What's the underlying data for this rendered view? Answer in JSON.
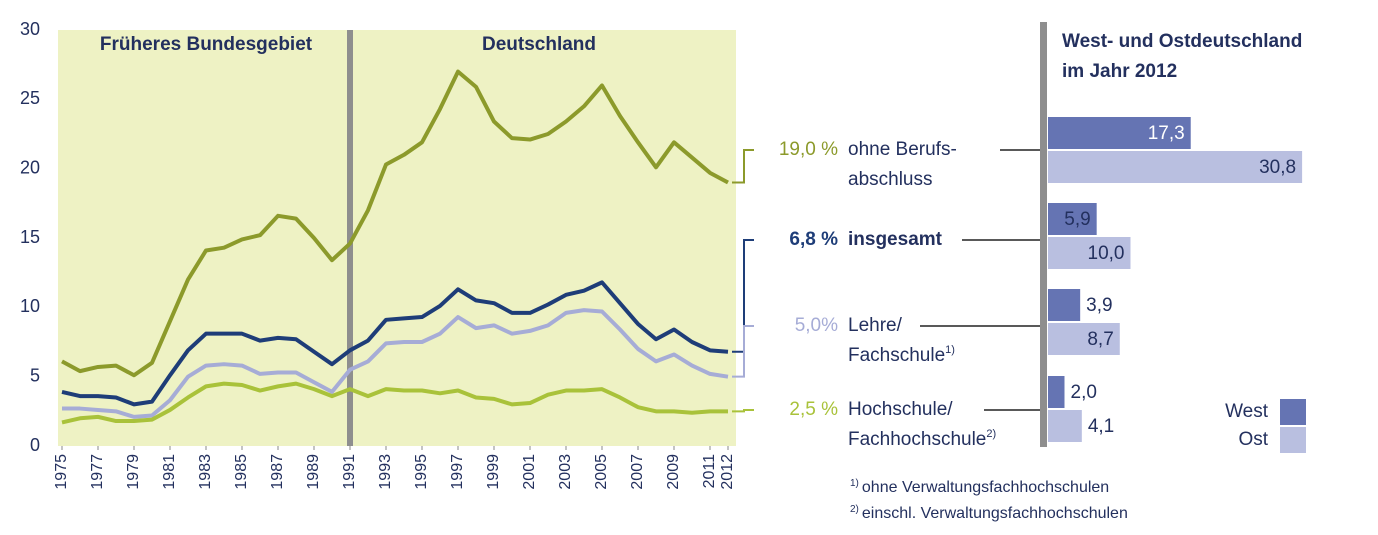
{
  "chart_data": [
    {
      "type": "line",
      "regions": [
        "Früheres Bundesgebiet",
        "Deutschland"
      ],
      "x": [
        1975,
        1976,
        1977,
        1978,
        1979,
        1980,
        1981,
        1982,
        1983,
        1984,
        1985,
        1986,
        1987,
        1988,
        1989,
        1990,
        1991,
        1992,
        1993,
        1994,
        1995,
        1996,
        1997,
        1998,
        1999,
        2000,
        2001,
        2002,
        2003,
        2004,
        2005,
        2006,
        2007,
        2008,
        2009,
        2010,
        2011,
        2012
      ],
      "xlim": [
        1975,
        2012
      ],
      "xticks": [
        1975,
        1977,
        1979,
        1981,
        1983,
        1985,
        1987,
        1989,
        1991,
        1993,
        1995,
        1997,
        1999,
        2001,
        2003,
        2005,
        2007,
        2009,
        2011,
        2012
      ],
      "ylim": [
        0,
        30
      ],
      "yticks": [
        0,
        5,
        10,
        15,
        20,
        25,
        30
      ],
      "divider": 1991,
      "series": [
        {
          "name_lines": [
            "ohne Berufs-",
            "abschluss"
          ],
          "end_label": "19,0 %",
          "color": "#8c9a2b",
          "values": [
            6.1,
            5.4,
            5.7,
            5.8,
            5.1,
            6.0,
            9.0,
            12.0,
            14.1,
            14.3,
            14.9,
            15.2,
            16.6,
            16.4,
            15.0,
            13.4,
            14.6,
            17.0,
            20.3,
            21.0,
            21.9,
            24.3,
            27.0,
            25.9,
            23.4,
            22.2,
            22.1,
            22.5,
            23.4,
            24.5,
            26.0,
            23.8,
            21.9,
            20.1,
            21.9,
            20.8,
            19.7,
            19.0
          ]
        },
        {
          "name_lines": [
            "insgesamt"
          ],
          "end_label": "6,8 %",
          "color": "#1e3d78",
          "bold": true,
          "values": [
            3.9,
            3.6,
            3.6,
            3.5,
            3.0,
            3.2,
            5.1,
            6.9,
            8.1,
            8.1,
            8.1,
            7.6,
            7.8,
            7.7,
            6.8,
            5.9,
            6.9,
            7.6,
            9.1,
            9.2,
            9.3,
            10.1,
            11.3,
            10.5,
            10.3,
            9.6,
            9.6,
            10.2,
            10.9,
            11.2,
            11.8,
            10.3,
            8.8,
            7.7,
            8.4,
            7.5,
            6.9,
            6.8
          ]
        },
        {
          "name_lines": [
            "Lehre/",
            "Fachschule"
          ],
          "footnote_mark": "1)",
          "end_label": "5,0%",
          "color": "#a6acd6",
          "values": [
            2.7,
            2.7,
            2.6,
            2.5,
            2.1,
            2.2,
            3.3,
            5.0,
            5.8,
            5.9,
            5.8,
            5.2,
            5.3,
            5.3,
            4.6,
            3.9,
            5.5,
            6.1,
            7.4,
            7.5,
            7.5,
            8.1,
            9.3,
            8.5,
            8.7,
            8.1,
            8.3,
            8.7,
            9.6,
            9.8,
            9.7,
            8.4,
            7.0,
            6.1,
            6.6,
            5.8,
            5.2,
            5.0
          ]
        },
        {
          "name_lines": [
            "Hochschule/",
            "Fachhochschule"
          ],
          "footnote_mark": "2)",
          "end_label": "2,5 %",
          "color": "#a9c23a",
          "values": [
            1.7,
            2.0,
            2.1,
            1.8,
            1.8,
            1.9,
            2.6,
            3.5,
            4.3,
            4.5,
            4.4,
            4.0,
            4.3,
            4.5,
            4.1,
            3.6,
            4.1,
            3.6,
            4.1,
            4.0,
            4.0,
            3.8,
            4.0,
            3.5,
            3.4,
            3.0,
            3.1,
            3.7,
            4.0,
            4.0,
            4.1,
            3.5,
            2.8,
            2.5,
            2.5,
            2.4,
            2.5,
            2.5
          ]
        }
      ]
    },
    {
      "type": "hbar",
      "title_lines": [
        "West- und Ostdeutschland",
        "im Jahr 2012"
      ],
      "series": [
        {
          "name": "West",
          "color": "#6574b3",
          "values": [
            17.3,
            5.9,
            3.9,
            2.0
          ],
          "value_labels": [
            "17,3",
            "5,9",
            "3,9",
            "2,0"
          ]
        },
        {
          "name": "Ost",
          "color": "#b9bfe0",
          "values": [
            30.8,
            10.0,
            8.7,
            4.1
          ],
          "value_labels": [
            "30,8",
            "10,0",
            "8,7",
            "4,1"
          ]
        }
      ],
      "footnotes": [
        {
          "mark": "1)",
          "text": "ohne Verwaltungsfachhochschulen"
        },
        {
          "mark": "2)",
          "text": "einschl. Verwaltungsfachhochschulen"
        }
      ]
    }
  ]
}
